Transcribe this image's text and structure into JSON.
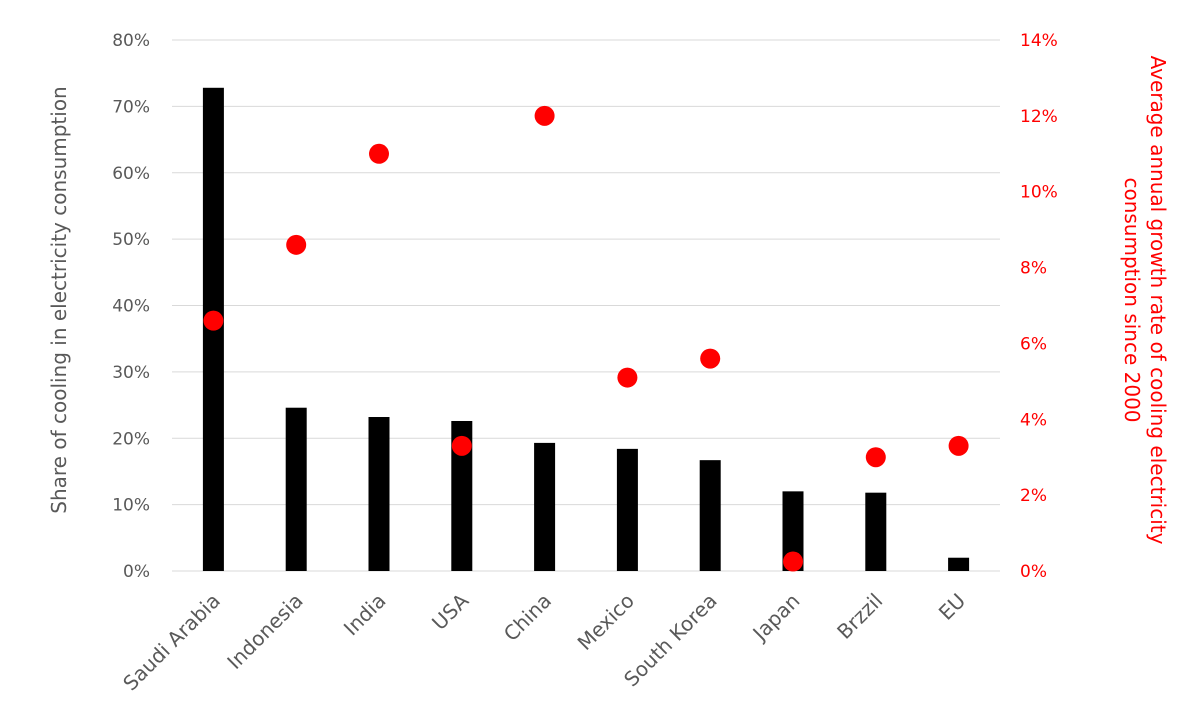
{
  "chart_data": {
    "type": "bar",
    "categories": [
      "Saudi Arabia",
      "Indonesia",
      "India",
      "USA",
      "China",
      "Mexico",
      "South Korea",
      "Japan",
      "Brzzil",
      "EU"
    ],
    "series": [
      {
        "type": "bar",
        "axis": "left",
        "color": "#000000",
        "values": [
          72.8,
          24.6,
          23.2,
          22.6,
          19.3,
          18.4,
          16.7,
          12.0,
          11.8,
          2.0
        ]
      },
      {
        "type": "scatter",
        "axis": "right",
        "color": "#ff0000",
        "values": [
          6.6,
          8.6,
          11.0,
          3.3,
          12.0,
          5.1,
          5.6,
          0.25,
          3.0,
          3.3
        ]
      }
    ],
    "ylabel": "Share of cooling in electricity consumption",
    "ylabel_right": "Average annual growth rate of cooling electricity consumption since 2000",
    "ylim": [
      0,
      80
    ],
    "ylim_right": [
      0,
      14
    ],
    "yticks": [
      "0%",
      "10%",
      "20%",
      "30%",
      "40%",
      "50%",
      "60%",
      "70%",
      "80%"
    ],
    "yticks_right": [
      "0%",
      "2%",
      "4%",
      "6%",
      "8%",
      "10%",
      "12%",
      "14%"
    ],
    "grid": true,
    "legend": "none"
  }
}
